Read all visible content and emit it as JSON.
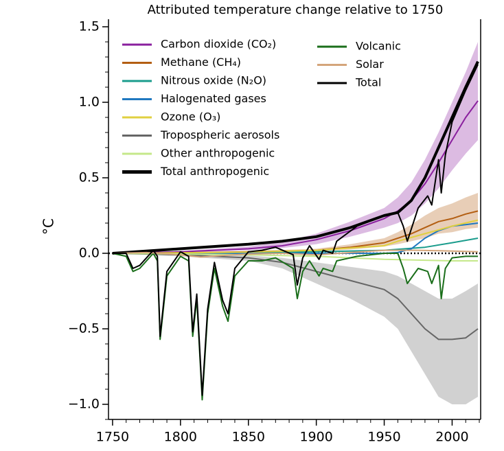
{
  "chart_data": {
    "type": "line",
    "title": "Attributed temperature change relative to 1750",
    "ylabel": "°C",
    "xlim": [
      1747,
      2021
    ],
    "ylim": [
      -1.1,
      1.55
    ],
    "xticks": [
      1750,
      1800,
      1850,
      1900,
      1950,
      2000
    ],
    "xminorticks": [
      1760,
      1770,
      1780,
      1790,
      1810,
      1820,
      1830,
      1840,
      1860,
      1870,
      1880,
      1890,
      1910,
      1920,
      1930,
      1940,
      1960,
      1970,
      1980,
      1990,
      2010,
      2020
    ],
    "yticks": [
      {
        "value": 1.5,
        "label": "1.5"
      },
      {
        "value": 1.0,
        "label": "1.0"
      },
      {
        "value": 0.5,
        "label": "0.5"
      },
      {
        "value": 0,
        "label": "0.0"
      },
      {
        "value": -0.5,
        "label": "−0.5"
      },
      {
        "value": -1.0,
        "label": "−1.0"
      }
    ],
    "yminorticks": [
      1.4,
      1.3,
      1.2,
      1.1,
      0.9,
      0.8,
      0.7,
      0.6,
      0.4,
      0.3,
      0.2,
      0.1,
      -0.1,
      -0.2,
      -0.3,
      -0.4,
      -0.6,
      -0.7,
      -0.8,
      -0.9,
      -1.1
    ],
    "zero_line": 0,
    "series": [
      {
        "name": "Carbon dioxide (CO₂)",
        "color": "#8a1f9e",
        "linewidth": 2,
        "x": [
          1750,
          1775,
          1800,
          1825,
          1850,
          1875,
          1900,
          1925,
          1950,
          1960,
          1970,
          1980,
          1990,
          2000,
          2010,
          2019
        ],
        "values": [
          0,
          0.005,
          0.01,
          0.02,
          0.03,
          0.05,
          0.09,
          0.15,
          0.23,
          0.28,
          0.35,
          0.46,
          0.6,
          0.75,
          0.9,
          1.01
        ],
        "lower": [
          0,
          0.003,
          0.007,
          0.014,
          0.02,
          0.035,
          0.06,
          0.11,
          0.17,
          0.2,
          0.25,
          0.33,
          0.43,
          0.55,
          0.66,
          0.75
        ],
        "upper": [
          0,
          0.008,
          0.015,
          0.03,
          0.045,
          0.075,
          0.13,
          0.21,
          0.3,
          0.37,
          0.47,
          0.62,
          0.8,
          1.0,
          1.2,
          1.4
        ]
      },
      {
        "name": "Methane (CH₄)",
        "color": "#b35e12",
        "linewidth": 2,
        "x": [
          1750,
          1775,
          1800,
          1825,
          1850,
          1875,
          1900,
          1925,
          1950,
          1960,
          1970,
          1980,
          1990,
          2000,
          2010,
          2019
        ],
        "values": [
          0,
          0.002,
          0.004,
          0.007,
          0.01,
          0.015,
          0.02,
          0.04,
          0.07,
          0.1,
          0.13,
          0.17,
          0.21,
          0.23,
          0.26,
          0.28
        ],
        "lower": [
          0,
          0.001,
          0.002,
          0.004,
          0.006,
          0.009,
          0.012,
          0.025,
          0.045,
          0.06,
          0.08,
          0.1,
          0.13,
          0.14,
          0.16,
          0.17
        ],
        "upper": [
          0,
          0.003,
          0.006,
          0.01,
          0.015,
          0.022,
          0.03,
          0.06,
          0.1,
          0.14,
          0.19,
          0.25,
          0.3,
          0.33,
          0.37,
          0.4
        ]
      },
      {
        "name": "Nitrous oxide (N₂O)",
        "color": "#1a9c8c",
        "linewidth": 2,
        "x": [
          1750,
          1800,
          1850,
          1900,
          1950,
          1980,
          2000,
          2019
        ],
        "values": [
          0,
          0.002,
          0.005,
          0.01,
          0.02,
          0.04,
          0.07,
          0.1
        ]
      },
      {
        "name": "Halogenated gases",
        "color": "#1f78c0",
        "linewidth": 2,
        "x": [
          1750,
          1950,
          1960,
          1970,
          1980,
          1990,
          2000,
          2010,
          2019
        ],
        "values": [
          0,
          0,
          0.005,
          0.03,
          0.1,
          0.15,
          0.18,
          0.19,
          0.2
        ]
      },
      {
        "name": "Ozone (O₃)",
        "color": "#e0d040",
        "linewidth": 2,
        "x": [
          1750,
          1800,
          1850,
          1900,
          1950,
          1960,
          1980,
          2000,
          2019
        ],
        "values": [
          0,
          0.003,
          0.008,
          0.02,
          0.05,
          0.08,
          0.13,
          0.18,
          0.22
        ]
      },
      {
        "name": "Tropospheric aerosols",
        "color": "#666666",
        "linewidth": 2,
        "x": [
          1750,
          1800,
          1850,
          1875,
          1900,
          1925,
          1950,
          1960,
          1970,
          1980,
          1990,
          2000,
          2010,
          2019
        ],
        "values": [
          0,
          -0.01,
          -0.03,
          -0.06,
          -0.12,
          -0.18,
          -0.24,
          -0.3,
          -0.4,
          -0.5,
          -0.57,
          -0.57,
          -0.56,
          -0.5
        ],
        "lower": [
          0,
          -0.02,
          -0.05,
          -0.1,
          -0.2,
          -0.3,
          -0.42,
          -0.5,
          -0.65,
          -0.8,
          -0.95,
          -1.0,
          -1.0,
          -0.95
        ],
        "upper": [
          0,
          -0.005,
          -0.015,
          -0.03,
          -0.06,
          -0.09,
          -0.12,
          -0.15,
          -0.2,
          -0.25,
          -0.3,
          -0.3,
          -0.25,
          -0.2
        ]
      },
      {
        "name": "Other anthropogenic",
        "color": "#c5e88a",
        "linewidth": 2,
        "x": [
          1750,
          1850,
          1900,
          1950,
          2000,
          2019
        ],
        "values": [
          0,
          -0.01,
          -0.02,
          -0.04,
          -0.05,
          -0.05
        ]
      },
      {
        "name": "Total anthropogenic",
        "color": "#000000",
        "linewidth": 4,
        "x": [
          1750,
          1800,
          1850,
          1875,
          1900,
          1925,
          1950,
          1960,
          1970,
          1980,
          1990,
          2000,
          2010,
          2019
        ],
        "values": [
          0,
          0.03,
          0.06,
          0.08,
          0.11,
          0.17,
          0.25,
          0.27,
          0.35,
          0.5,
          0.7,
          0.9,
          1.1,
          1.27
        ]
      },
      {
        "name": "Volcanic",
        "color": "#1a6e1a",
        "linewidth": 2,
        "x": [
          1750,
          1760,
          1765,
          1770,
          1780,
          1783,
          1785,
          1790,
          1800,
          1806,
          1809,
          1812,
          1816,
          1820,
          1825,
          1831,
          1835,
          1840,
          1850,
          1860,
          1870,
          1883,
          1886,
          1890,
          1895,
          1902,
          1905,
          1912,
          1915,
          1930,
          1950,
          1960,
          1964,
          1967,
          1975,
          1982,
          1985,
          1990,
          1992,
          1995,
          2000,
          2010,
          2019
        ],
        "values": [
          0,
          -0.02,
          -0.12,
          -0.1,
          0,
          -0.05,
          -0.57,
          -0.15,
          -0.02,
          -0.05,
          -0.55,
          -0.3,
          -0.97,
          -0.4,
          -0.1,
          -0.35,
          -0.45,
          -0.15,
          -0.05,
          -0.05,
          -0.03,
          -0.1,
          -0.3,
          -0.12,
          -0.05,
          -0.15,
          -0.1,
          -0.12,
          -0.05,
          -0.02,
          0,
          0,
          -0.1,
          -0.2,
          -0.1,
          -0.12,
          -0.2,
          -0.08,
          -0.3,
          -0.1,
          -0.03,
          -0.02,
          -0.02
        ]
      },
      {
        "name": "Solar",
        "color": "#d4a57a",
        "linewidth": 2,
        "x": [
          1750,
          1775,
          1800,
          1815,
          1830,
          1850,
          1875,
          1900,
          1925,
          1950,
          1975,
          2000,
          2019
        ],
        "values": [
          0,
          0.005,
          -0.01,
          -0.025,
          -0.015,
          -0.005,
          0,
          -0.01,
          0.005,
          0.02,
          0.02,
          0.015,
          0.01
        ]
      },
      {
        "name": "Total",
        "color": "#000000",
        "linewidth": 2,
        "x": [
          1750,
          1760,
          1765,
          1770,
          1780,
          1783,
          1785,
          1790,
          1800,
          1806,
          1809,
          1812,
          1816,
          1820,
          1825,
          1831,
          1835,
          1840,
          1850,
          1860,
          1870,
          1883,
          1886,
          1890,
          1895,
          1902,
          1905,
          1912,
          1915,
          1930,
          1950,
          1960,
          1964,
          1967,
          1975,
          1982,
          1985,
          1990,
          1992,
          1995,
          2000,
          2010,
          2019
        ],
        "values": [
          0,
          0,
          -0.1,
          -0.08,
          0.02,
          -0.02,
          -0.55,
          -0.12,
          0.01,
          -0.02,
          -0.52,
          -0.27,
          -0.94,
          -0.37,
          -0.06,
          -0.31,
          -0.4,
          -0.1,
          0.01,
          0.02,
          0.04,
          -0.01,
          -0.21,
          -0.03,
          0.05,
          -0.04,
          0.02,
          0,
          0.08,
          0.18,
          0.25,
          0.27,
          0.18,
          0.08,
          0.3,
          0.38,
          0.32,
          0.62,
          0.4,
          0.65,
          0.87,
          1.08,
          1.25
        ]
      }
    ]
  }
}
